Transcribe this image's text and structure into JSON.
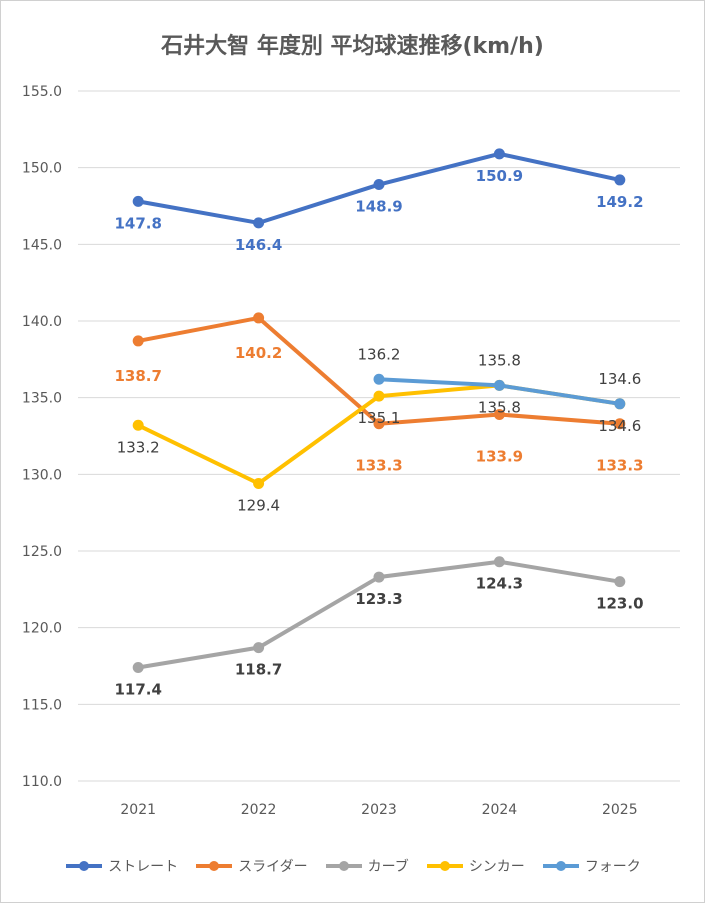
{
  "chart_data": {
    "type": "line",
    "title": "石井大智 年度別 平均球速推移(km/h)",
    "categories": [
      "2021",
      "2022",
      "2023",
      "2024",
      "2025"
    ],
    "ylim": [
      110,
      155
    ],
    "yticks": [
      "110.0",
      "115.0",
      "120.0",
      "125.0",
      "130.0",
      "135.0",
      "140.0",
      "145.0",
      "150.0",
      "155.0"
    ],
    "grid": true,
    "legend_position": "bottom",
    "series": [
      {
        "name": "ストレート",
        "color": "#4472C4",
        "label_color": "#4472C4",
        "label_pos": "below",
        "bold": true,
        "values": [
          147.8,
          146.4,
          148.9,
          150.9,
          149.2
        ],
        "labels": [
          "147.8",
          "146.4",
          "148.9",
          "150.9",
          "149.2"
        ]
      },
      {
        "name": "スライダー",
        "color": "#ED7D31",
        "label_color": "#ED7D31",
        "label_pos": "below2",
        "bold": true,
        "values": [
          138.7,
          140.2,
          133.3,
          133.9,
          133.3
        ],
        "labels": [
          "138.7",
          "140.2",
          "133.3",
          "133.9",
          "133.3"
        ]
      },
      {
        "name": "カーブ",
        "color": "#A5A5A5",
        "label_color": "#404040",
        "label_pos": "below",
        "bold": true,
        "values": [
          117.4,
          118.7,
          123.3,
          124.3,
          123.0
        ],
        "labels": [
          "117.4",
          "118.7",
          "123.3",
          "124.3",
          "123.0"
        ]
      },
      {
        "name": "シンカー",
        "color": "#FFC000",
        "label_color": "#404040",
        "label_pos": "below",
        "bold": false,
        "values": [
          133.2,
          129.4,
          135.1,
          135.8,
          134.6
        ],
        "labels": [
          "133.2",
          "129.4",
          "135.1",
          "135.8",
          "134.6"
        ]
      },
      {
        "name": "フォーク",
        "color": "#5B9BD5",
        "label_color": "#404040",
        "label_pos": "above",
        "bold": false,
        "values": [
          null,
          null,
          136.2,
          135.8,
          134.6
        ],
        "labels": [
          "",
          "",
          "136.2",
          "135.8",
          "134.6"
        ]
      }
    ]
  }
}
